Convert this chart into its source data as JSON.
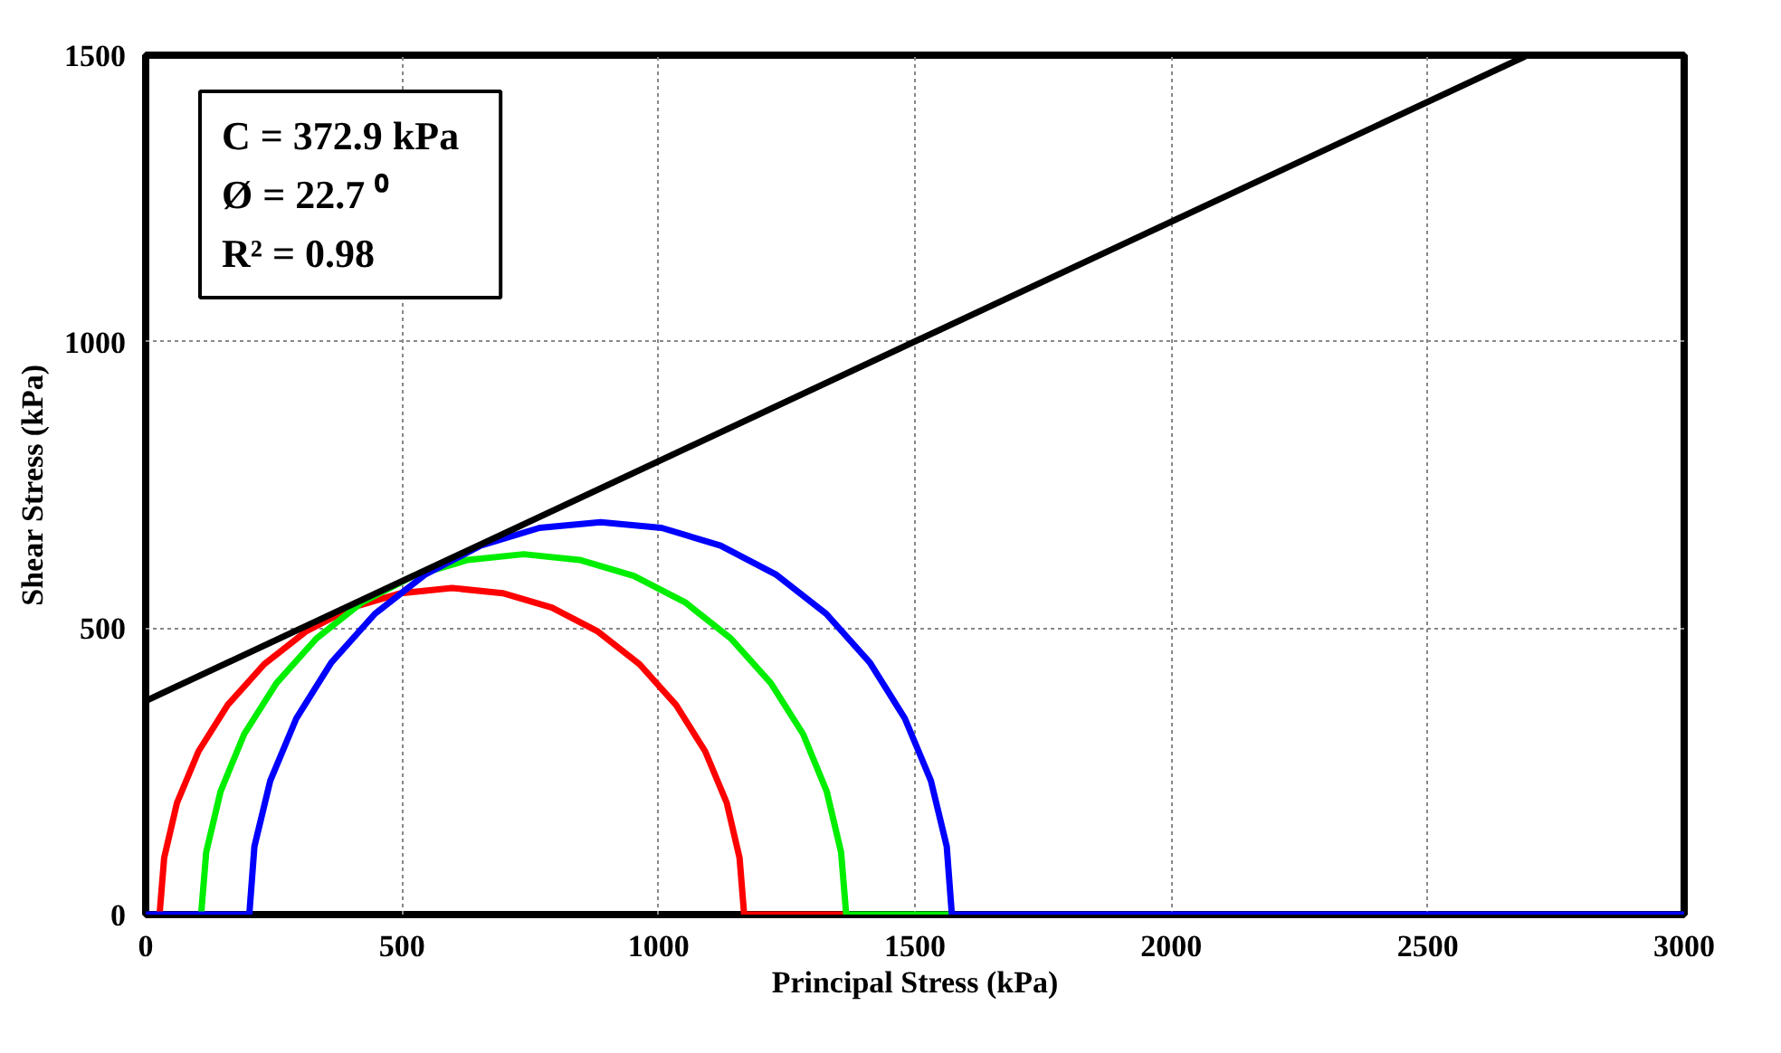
{
  "chart_data": {
    "type": "line",
    "xlabel": "Principal Stress (kPa)",
    "ylabel": "Shear Stress (kPa)",
    "xlim": [
      0,
      3000
    ],
    "ylim": [
      0,
      1500
    ],
    "xticks": [
      0,
      500,
      1000,
      1500,
      2000,
      2500,
      3000
    ],
    "yticks": [
      0,
      500,
      1000,
      1500
    ],
    "grid": true,
    "marker": "none",
    "line_style": "solid",
    "annotations": [
      "C  = 372.9  kPa",
      "Ø  = 22.7 ⁰",
      "R² = 0.98"
    ],
    "series": [
      {
        "color": "#ff0000",
        "x": [
          27,
          36,
          61,
          103,
          160,
          231,
          312,
          402,
          498,
          597,
          696,
          792,
          882,
          963,
          1034,
          1091,
          1133,
          1158,
          1167,
          1366
        ],
        "values": [
          0,
          99,
          195,
          285,
          366,
          437,
          494,
          536,
          561,
          570,
          561,
          536,
          494,
          437,
          366,
          285,
          195,
          99,
          0,
          0
        ]
      },
      {
        "color": "#00ee00",
        "x": [
          108,
          118,
          146,
          192,
          255,
          333,
          422,
          522,
          628,
          737,
          846,
          952,
          1052,
          1141,
          1219,
          1282,
          1328,
          1356,
          1366,
          1572
        ],
        "values": [
          0,
          109,
          215,
          315,
          404,
          482,
          545,
          591,
          619,
          629,
          619,
          591,
          545,
          482,
          404,
          315,
          215,
          109,
          0,
          0
        ]
      },
      {
        "color": "#0000ff",
        "x": [
          0,
          202,
          212,
          243,
          294,
          362,
          447,
          544,
          653,
          768,
          887,
          1006,
          1121,
          1230,
          1327,
          1412,
          1480,
          1531,
          1562,
          1572,
          3000
        ],
        "values": [
          0,
          0,
          119,
          234,
          343,
          440,
          525,
          593,
          644,
          675,
          685,
          675,
          644,
          593,
          525,
          440,
          343,
          234,
          119,
          0,
          0
        ]
      },
      {
        "color": "#000000",
        "x": [
          0,
          2690
        ],
        "values": [
          373,
          1498
        ]
      }
    ]
  }
}
